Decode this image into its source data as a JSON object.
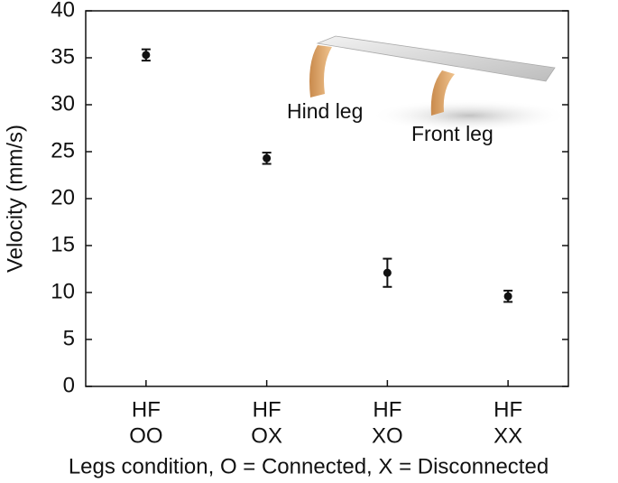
{
  "chart_data": {
    "type": "errorbar",
    "categories": [
      [
        "HF",
        "OO"
      ],
      [
        "HF",
        "OX"
      ],
      [
        "HF",
        "XO"
      ],
      [
        "HF",
        "XX"
      ]
    ],
    "values": [
      35.3,
      24.3,
      12.1,
      9.6
    ],
    "errors": [
      0.6,
      0.6,
      1.5,
      0.6
    ],
    "color": "#111111",
    "ylim": [
      0,
      40
    ],
    "yticks": [
      0,
      5,
      10,
      15,
      20,
      25,
      30,
      35,
      40
    ],
    "ylabel": "Velocity (mm/s)",
    "xlabel": "Legs condition, O = Connected, X = Disconnected",
    "annotations": [
      "Hind leg",
      "Front leg"
    ]
  }
}
